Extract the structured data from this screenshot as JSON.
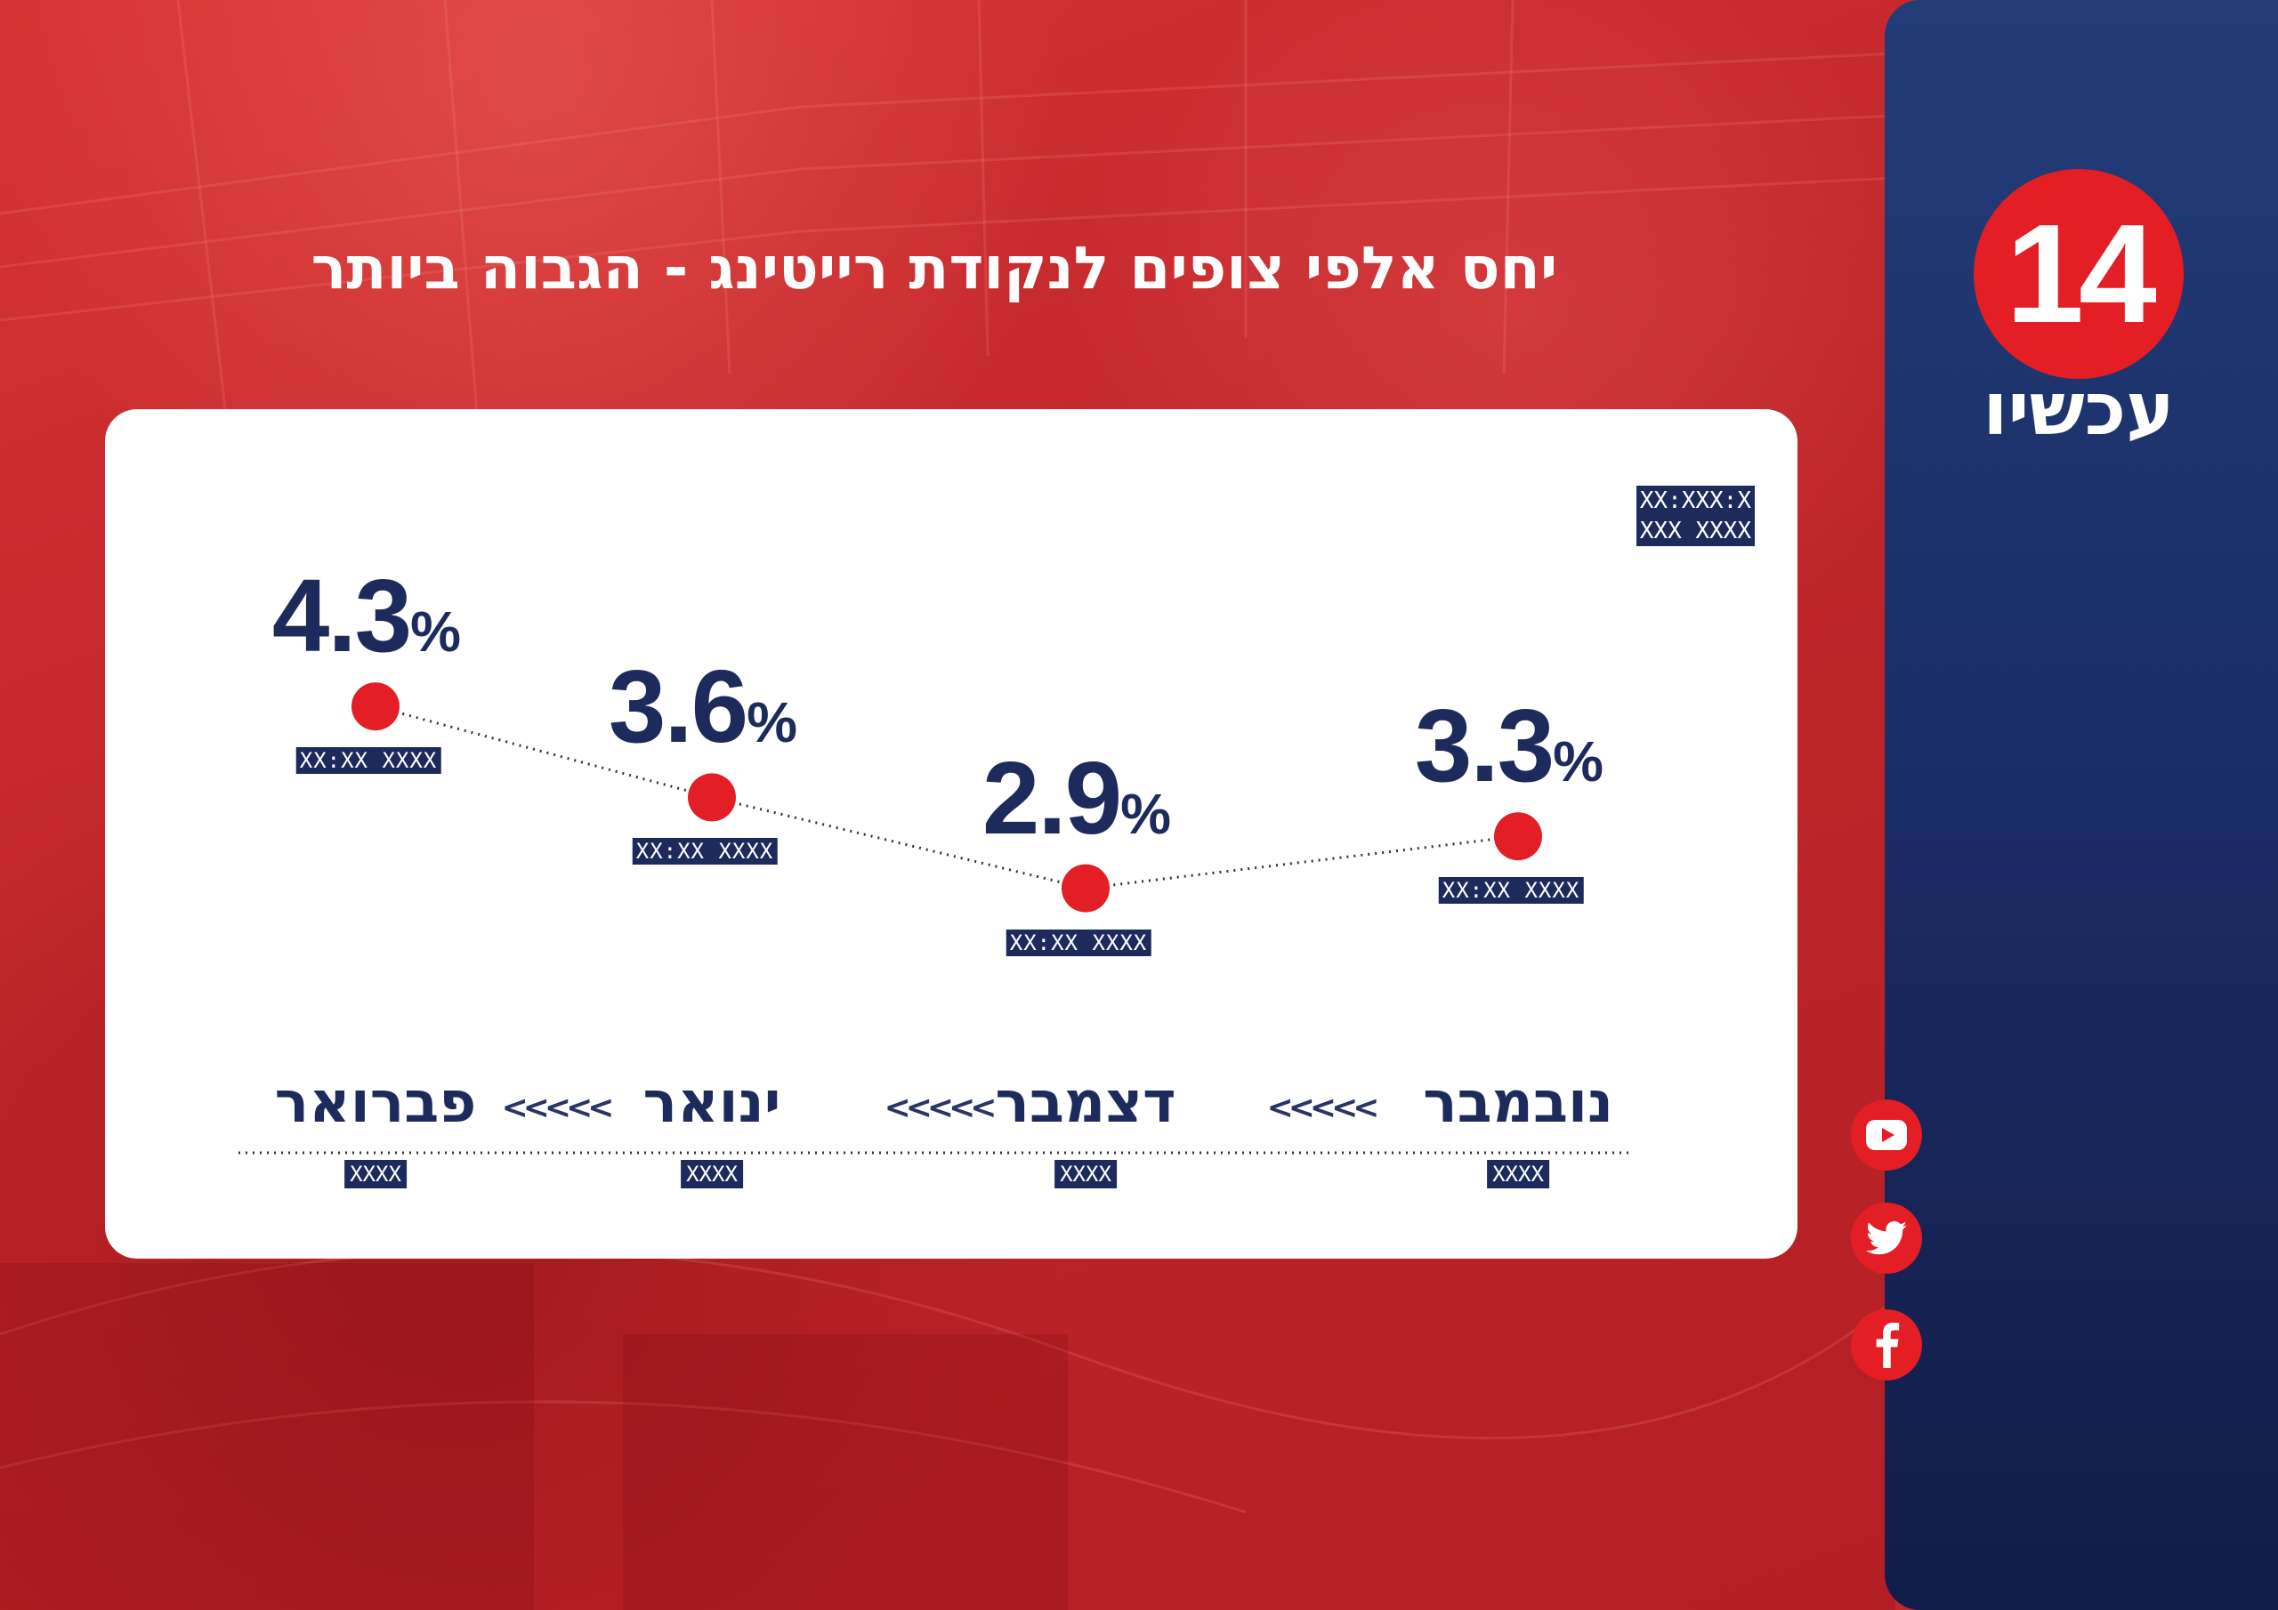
{
  "title": "יחס אלפי צופים לנקודת רייטינג - הגבוה ביותר",
  "logo": {
    "number": "14",
    "text": "עכשיו"
  },
  "legend_lines": [
    "XX:XXX:X",
    "XXX XXXX"
  ],
  "social": [
    {
      "name": "youtube-icon"
    },
    {
      "name": "twitter-icon"
    },
    {
      "name": "facebook-icon"
    }
  ],
  "chart_data": {
    "type": "line",
    "title": "יחס אלפי צופים לנקודת רייטינג - הגבוה ביותר",
    "categories": [
      "נובמבר",
      "דצמבר",
      "ינואר",
      "פברואר"
    ],
    "values": [
      3.3,
      2.9,
      3.6,
      4.3
    ],
    "value_labels": [
      "3.3%",
      "2.9%",
      "3.6%",
      "4.3%"
    ],
    "point_sublabels": [
      "XX:XX XXXX",
      "XX:XX XXXX",
      "XX:XX XXXX",
      "XX:XX XXXX"
    ],
    "period_labels": [
      "XXXX",
      "XXXX",
      "XXXX",
      "XXXX"
    ],
    "point_color": "#e31e24",
    "text_color": "#1d2b5c",
    "direction": "right-to-left",
    "grid": false
  }
}
